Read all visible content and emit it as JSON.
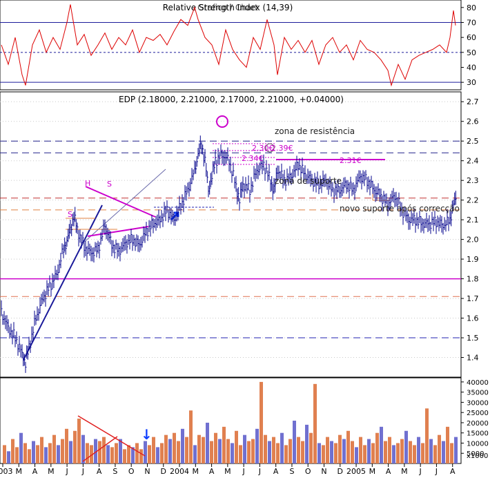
{
  "chart_data": [
    {
      "type": "line",
      "panel": "rsi",
      "title": "Relative Strength Index (14,39)",
      "overlay_title": "Grafico / Chart",
      "ylim": [
        25,
        85
      ],
      "yticks": [
        30,
        40,
        50,
        60,
        70,
        80
      ],
      "reference_lines": [
        {
          "value": 70,
          "style": "solid",
          "color": "#1a1a9a"
        },
        {
          "value": 50,
          "style": "dashed",
          "color": "#1a1a9a"
        },
        {
          "value": 30,
          "style": "solid",
          "color": "#1a1a9a"
        }
      ],
      "series": [
        {
          "color": "#dd0000",
          "x": [
            0,
            10,
            20,
            30,
            35,
            45,
            55,
            65,
            75,
            85,
            95,
            100,
            110,
            120,
            130,
            140,
            150,
            160,
            170,
            180,
            190,
            200,
            210,
            220,
            230,
            240,
            250,
            260,
            270,
            280,
            285,
            295,
            305,
            315,
            325,
            335,
            345,
            355,
            365,
            375,
            385,
            395,
            400,
            410,
            420,
            430,
            440,
            450,
            460,
            470,
            480,
            490,
            500,
            510,
            520,
            530,
            540,
            550,
            560,
            565,
            575,
            585,
            595,
            605,
            615,
            625,
            635,
            645,
            650,
            655,
            658
          ],
          "values": [
            55,
            42,
            60,
            35,
            28,
            55,
            65,
            50,
            60,
            52,
            70,
            82,
            55,
            62,
            48,
            55,
            63,
            52,
            60,
            55,
            65,
            50,
            60,
            58,
            62,
            55,
            64,
            72,
            68,
            80,
            72,
            60,
            55,
            42,
            65,
            52,
            45,
            40,
            60,
            52,
            72,
            55,
            35,
            60,
            52,
            58,
            50,
            58,
            42,
            55,
            60,
            50,
            55,
            45,
            58,
            52,
            50,
            45,
            38,
            28,
            42,
            32,
            45,
            48,
            50,
            52,
            55,
            50,
            60,
            78,
            68
          ]
        }
      ]
    },
    {
      "type": "ohlc",
      "panel": "price",
      "title": "EDP",
      "last_ohlc": "EDP (2.18000, 2.21000, 2.17000, 2.21000, +0.04000)",
      "ylim": [
        1.3,
        2.75
      ],
      "yticks": [
        1.4,
        1.5,
        1.6,
        1.7,
        1.8,
        1.9,
        2.0,
        2.1,
        2.2,
        2.3,
        2.4,
        2.5,
        2.6,
        2.7
      ],
      "grid": true,
      "x_labels": [
        "003",
        "M",
        "A",
        "M",
        "J",
        "J",
        "A",
        "S",
        "O",
        "N",
        "D",
        "2004",
        "M",
        "A",
        "M",
        "J",
        "J",
        "A",
        "S",
        "O",
        "N",
        "D",
        "2005",
        "M",
        "A",
        "M",
        "J",
        "J",
        "A"
      ],
      "series": [
        {
          "color": "#00008b",
          "x": [
            0,
            10,
            20,
            30,
            35,
            40,
            50,
            60,
            70,
            80,
            90,
            95,
            100,
            105,
            110,
            120,
            130,
            140,
            150,
            160,
            170,
            180,
            190,
            200,
            210,
            220,
            230,
            240,
            250,
            260,
            270,
            280,
            285,
            290,
            295,
            300,
            305,
            310,
            320,
            330,
            340,
            345,
            350,
            360,
            370,
            380,
            390,
            395,
            400,
            410,
            420,
            430,
            440,
            450,
            460,
            470,
            480,
            490,
            500,
            510,
            520,
            530,
            540,
            550,
            560,
            570,
            580,
            590,
            600,
            610,
            620,
            630,
            640,
            650,
            655,
            660
          ],
          "values": [
            1.63,
            1.55,
            1.5,
            1.42,
            1.37,
            1.45,
            1.6,
            1.7,
            1.76,
            1.82,
            1.95,
            1.99,
            2.05,
            2.12,
            2.05,
            1.96,
            1.93,
            1.95,
            2.07,
            1.97,
            1.94,
            1.98,
            2.0,
            1.97,
            2.04,
            2.08,
            2.1,
            2.15,
            2.1,
            2.17,
            2.25,
            2.35,
            2.43,
            2.48,
            2.4,
            2.25,
            2.32,
            2.4,
            2.43,
            2.4,
            2.27,
            2.2,
            2.28,
            2.25,
            2.35,
            2.38,
            2.3,
            2.25,
            2.35,
            2.3,
            2.32,
            2.38,
            2.33,
            2.3,
            2.28,
            2.3,
            2.25,
            2.25,
            2.28,
            2.25,
            2.32,
            2.3,
            2.25,
            2.22,
            2.18,
            2.22,
            2.15,
            2.1,
            2.1,
            2.08,
            2.08,
            2.09,
            2.07,
            2.1,
            2.18,
            2.21
          ]
        }
      ],
      "reference_lines": [
        {
          "value": 2.5,
          "style": "dashed",
          "color": "#20208c"
        },
        {
          "value": 2.44,
          "style": "dashed",
          "color": "#20208c"
        },
        {
          "value": 2.21,
          "style": "dashed",
          "color": "#c03030"
        },
        {
          "value": 2.15,
          "style": "dashed",
          "color": "#e08040"
        },
        {
          "value": 1.8,
          "style": "solid",
          "color": "#cc00cc"
        },
        {
          "value": 1.71,
          "style": "dashed",
          "color": "#e07050"
        },
        {
          "value": 1.5,
          "style": "dashed",
          "color": "#2020b0"
        }
      ],
      "annotations": [
        {
          "text": "zona de resistência"
        },
        {
          "text": "zona de suporte"
        },
        {
          "text": "novo suporte após correcção"
        },
        {
          "text": "2.30€",
          "color": "#cc00cc"
        },
        {
          "text": "2.39€",
          "color": "#cc00cc"
        },
        {
          "text": "2.34€",
          "color": "#cc00cc"
        },
        {
          "text": "2.31€",
          "color": "#cc00cc"
        },
        {
          "text": "H",
          "color": "#cc00cc"
        },
        {
          "text": "S",
          "color": "#cc00cc"
        },
        {
          "text": "S",
          "color": "#cc00cc"
        }
      ]
    },
    {
      "type": "bar",
      "panel": "volume",
      "ylim": [
        0,
        42000
      ],
      "yticks": [
        5000,
        10000,
        15000,
        20000,
        25000,
        30000,
        35000,
        40000
      ],
      "unit_label": "x1000",
      "colors": {
        "up": "#7070d0",
        "down": "#e08050"
      },
      "x": [
        2,
        8,
        14,
        20,
        26,
        32,
        38,
        44,
        50,
        56,
        62,
        68,
        74,
        80,
        86,
        92,
        98,
        104,
        110,
        116,
        122,
        128,
        134,
        140,
        146,
        152,
        158,
        164,
        170,
        176,
        182,
        188,
        194,
        200,
        206,
        212,
        218,
        224,
        230,
        236,
        242,
        248,
        254,
        260,
        266,
        272,
        278,
        284,
        290,
        296,
        302,
        308,
        314,
        320,
        326,
        332,
        338,
        344,
        350,
        356,
        362,
        368,
        374,
        380,
        386,
        392,
        398,
        404,
        410,
        416,
        422,
        428,
        434,
        440,
        446,
        452,
        458,
        464,
        470,
        476,
        482,
        488,
        494,
        500,
        506,
        512,
        518,
        524,
        530,
        536,
        542,
        548,
        554,
        560,
        566,
        572,
        578,
        584,
        590,
        596,
        602,
        608,
        614,
        620,
        626,
        632,
        638,
        644,
        650,
        656
      ],
      "values": [
        9000,
        6000,
        12000,
        8000,
        15000,
        10000,
        7000,
        11000,
        9000,
        13000,
        8000,
        10000,
        14000,
        9000,
        12000,
        17000,
        11000,
        16000,
        22000,
        14000,
        10000,
        9000,
        12000,
        11000,
        13000,
        9000,
        8000,
        10000,
        12000,
        7000,
        9000,
        8000,
        10000,
        7000,
        11000,
        9000,
        13000,
        8000,
        10000,
        14000,
        12000,
        15000,
        11000,
        17000,
        13000,
        26000,
        9000,
        14000,
        13000,
        20000,
        11000,
        15000,
        12000,
        18000,
        12000,
        10000,
        16000,
        9000,
        14000,
        11000,
        12000,
        17000,
        40000,
        14000,
        11000,
        13000,
        10000,
        15000,
        9000,
        12000,
        21000,
        13000,
        11000,
        19000,
        15000,
        39000,
        10000,
        9000,
        13000,
        11000,
        10000,
        14000,
        12000,
        16000,
        11000,
        8000,
        13000,
        9000,
        12000,
        10000,
        15000,
        18000,
        11000,
        13000,
        9000,
        10000,
        12000,
        16000,
        11000,
        9000,
        13000,
        10000,
        27000,
        12000,
        9000,
        14000,
        11000,
        18000,
        10000,
        13000
      ],
      "annotations": [
        {
          "text": "↓",
          "color": "#1040ff"
        }
      ]
    }
  ]
}
